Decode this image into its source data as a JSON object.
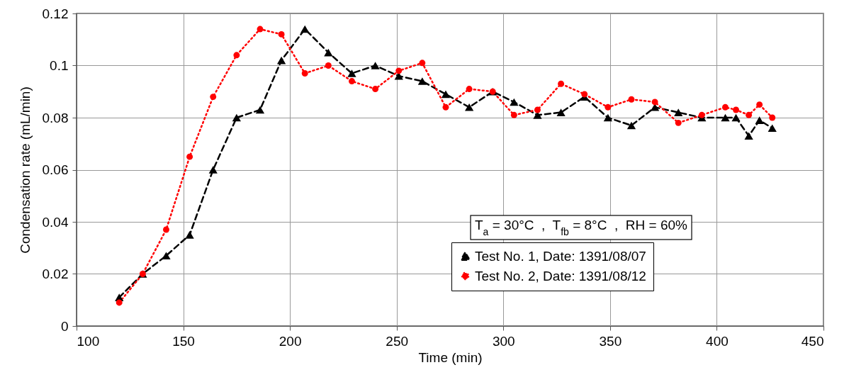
{
  "chart_data": {
    "type": "line",
    "xlabel": "Time (min)",
    "ylabel": "Condensation rate (mL/min)",
    "x": [
      120,
      131,
      142,
      153,
      164,
      175,
      186,
      196,
      207,
      218,
      229,
      240,
      251,
      262,
      273,
      284,
      295,
      305,
      316,
      327,
      338,
      349,
      360,
      371,
      382,
      393,
      404,
      409,
      415,
      420,
      426
    ],
    "series": [
      {
        "name": "Test No. 1, Date: 1391/08/07",
        "color": "#000000",
        "marker": "triangle",
        "line_style": "dashed",
        "values": [
          0.011,
          0.02,
          0.027,
          0.035,
          0.06,
          0.08,
          0.083,
          0.102,
          0.114,
          0.105,
          0.097,
          0.1,
          0.096,
          0.094,
          0.089,
          0.084,
          0.09,
          0.086,
          0.081,
          0.082,
          0.088,
          0.08,
          0.077,
          0.084,
          0.082,
          0.08,
          0.08,
          0.08,
          0.073,
          0.079,
          0.076
        ]
      },
      {
        "name": "Test No. 2, Date: 1391/08/12",
        "color": "#ff0000",
        "marker": "circle",
        "line_style": "dotted",
        "values": [
          0.009,
          0.02,
          0.037,
          0.065,
          0.088,
          0.104,
          0.114,
          0.112,
          0.097,
          0.1,
          0.094,
          0.091,
          0.098,
          0.101,
          0.084,
          0.091,
          0.09,
          0.081,
          0.083,
          0.093,
          0.089,
          0.084,
          0.087,
          0.086,
          0.078,
          0.081,
          0.084,
          0.083,
          0.081,
          0.085,
          0.08
        ]
      }
    ],
    "xlim": [
      100,
      450
    ],
    "xticks": [
      100,
      150,
      200,
      250,
      300,
      350,
      400,
      450
    ],
    "ylim": [
      0,
      0.12
    ],
    "yticks": [
      0,
      0.02,
      0.04,
      0.06,
      0.08,
      0.1,
      0.12
    ],
    "grid": true,
    "legend": "bottom right",
    "annotations": [
      "T$_{a}$ = 30°C  ,  T$_{fb}$ = 8°C  ,  RH = 60%"
    ]
  }
}
